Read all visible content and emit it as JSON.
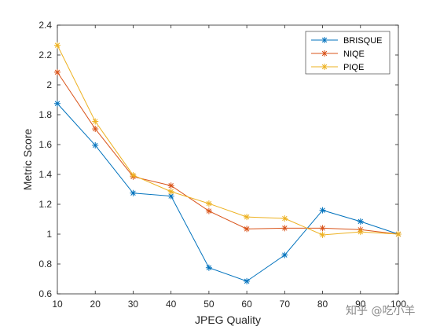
{
  "chart_data": {
    "type": "line",
    "title": "",
    "xlabel": "JPEG Quality",
    "ylabel": "Metric Score",
    "x": [
      10,
      20,
      30,
      40,
      50,
      60,
      70,
      80,
      90,
      100
    ],
    "xlim": [
      10,
      100
    ],
    "ylim": [
      0.6,
      2.4
    ],
    "xticks": [
      10,
      20,
      30,
      40,
      50,
      60,
      70,
      80,
      90,
      100
    ],
    "yticks": [
      "0.6",
      "0.8",
      "1",
      "1.2",
      "1.4",
      "1.6",
      "1.8",
      "2",
      "2.2",
      "2.4"
    ],
    "grid": false,
    "legend_position": "top-right",
    "marker": "asterisk",
    "series": [
      {
        "name": "BRISQUE",
        "color": "#0072BD",
        "values": [
          1.875,
          1.595,
          1.275,
          1.255,
          0.775,
          0.685,
          0.86,
          1.16,
          1.085,
          1.0
        ]
      },
      {
        "name": "NIQE",
        "color": "#D95319",
        "values": [
          2.085,
          1.705,
          1.385,
          1.325,
          1.155,
          1.035,
          1.04,
          1.04,
          1.03,
          1.0
        ]
      },
      {
        "name": "PIQE",
        "color": "#EDB120",
        "values": [
          2.265,
          1.755,
          1.395,
          1.285,
          1.205,
          1.115,
          1.105,
          0.995,
          1.015,
          1.0
        ]
      }
    ]
  },
  "watermark": "知乎 @吃小羊"
}
